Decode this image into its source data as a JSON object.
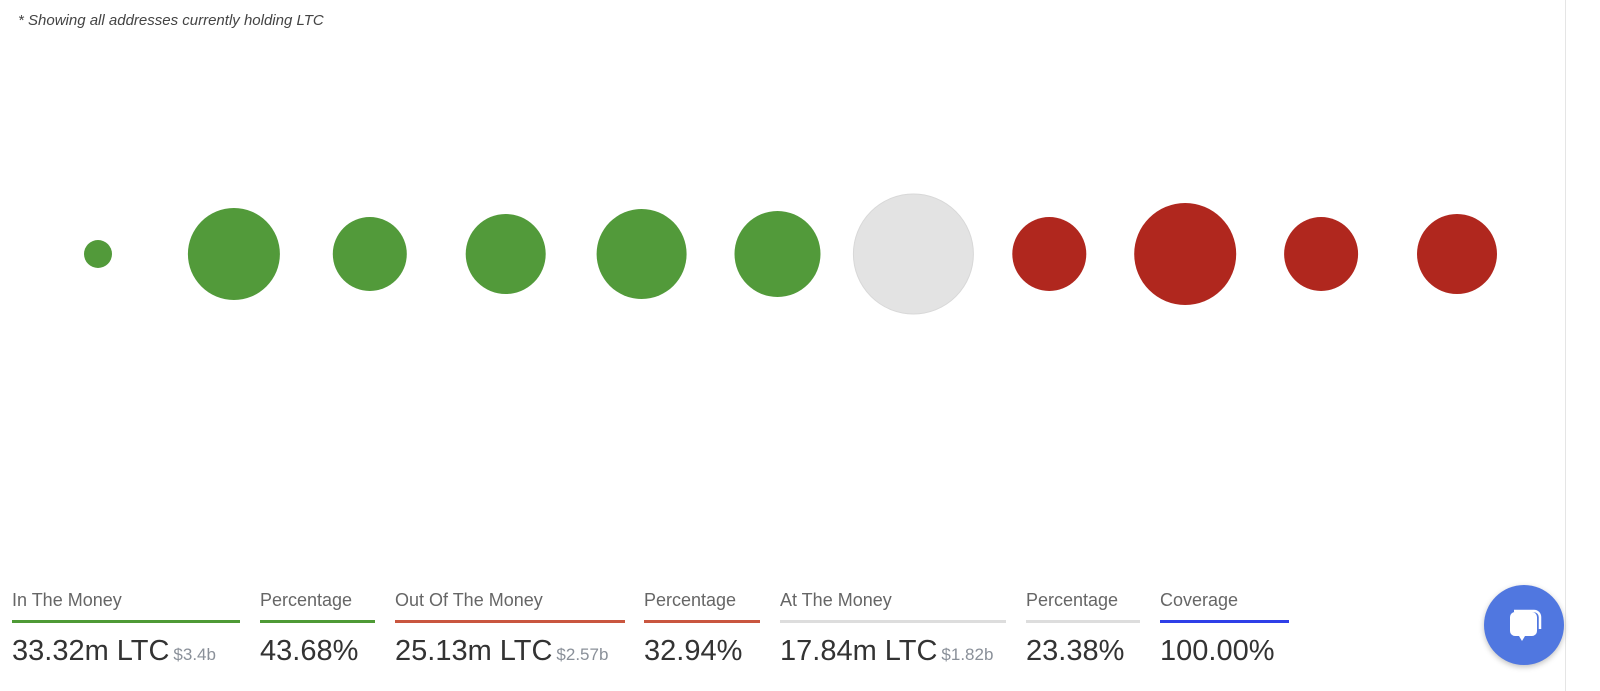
{
  "note": "* Showing all addresses currently holding LTC",
  "chart_data": {
    "type": "bubble",
    "bubbles": [
      {
        "relative_size": 14,
        "status": "in"
      },
      {
        "relative_size": 46,
        "status": "in"
      },
      {
        "relative_size": 37,
        "status": "in"
      },
      {
        "relative_size": 40,
        "status": "in"
      },
      {
        "relative_size": 45,
        "status": "in"
      },
      {
        "relative_size": 43,
        "status": "in"
      },
      {
        "relative_size": 60,
        "status": "at"
      },
      {
        "relative_size": 37,
        "status": "out"
      },
      {
        "relative_size": 51,
        "status": "out"
      },
      {
        "relative_size": 37,
        "status": "out"
      },
      {
        "relative_size": 40,
        "status": "out"
      }
    ],
    "colors": {
      "in": "#529a3a",
      "at": "#e3e3e3",
      "out": "#b0271e"
    }
  },
  "stats": [
    {
      "label": "In The Money",
      "value": "33.32m LTC",
      "sub": "$3.4b",
      "color": "#4e9a35"
    },
    {
      "label": "Percentage",
      "value": "43.68%",
      "sub": "",
      "color": "#4e9a35"
    },
    {
      "label": "Out Of The Money",
      "value": "25.13m LTC",
      "sub": "$2.57b",
      "color": "#c9563f"
    },
    {
      "label": "Percentage",
      "value": "32.94%",
      "sub": "",
      "color": "#c9563f"
    },
    {
      "label": "At The Money",
      "value": "17.84m LTC",
      "sub": "$1.82b",
      "color": "#dddddd"
    },
    {
      "label": "Percentage",
      "value": "23.38%",
      "sub": "",
      "color": "#dddddd"
    },
    {
      "label": "Coverage",
      "value": "100.00%",
      "sub": "",
      "color": "#2f3fe8"
    }
  ],
  "chat_icon": "chat-bubble-icon"
}
